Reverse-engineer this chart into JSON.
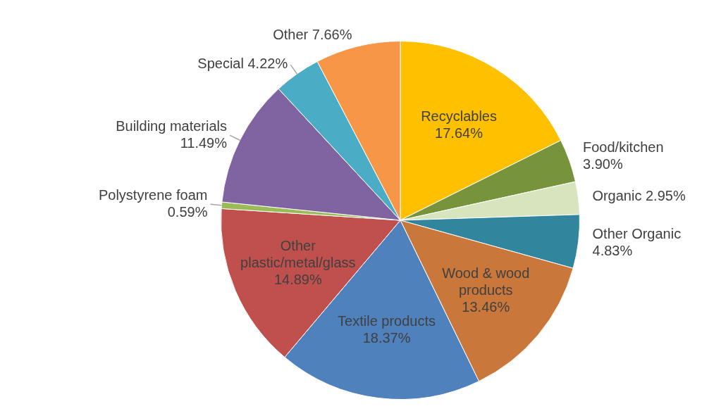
{
  "chart_data": {
    "type": "pie",
    "categories": [
      "Recyclables",
      "Food/kitchen",
      "Organic",
      "Other Organic",
      "Wood & wood products",
      "Textile products",
      "Other plastic/metal/glass",
      "Polystyrene foam",
      "Building materials",
      "Special",
      "Other"
    ],
    "values": [
      17.64,
      3.9,
      2.95,
      4.83,
      13.46,
      18.37,
      14.89,
      0.59,
      11.49,
      4.22,
      7.66
    ],
    "colors": [
      "#ffc000",
      "#77933c",
      "#d7e4bd",
      "#31859c",
      "#c9773a",
      "#4f81bd",
      "#c0504d",
      "#9bbb59",
      "#8064a2",
      "#4bacc6",
      "#f79646"
    ],
    "value_labels": [
      "17.64%",
      "3.90%",
      "2.95%",
      "4.83%",
      "13.46%",
      "18.37%",
      "14.89%",
      "0.59%",
      "11.49%",
      "4.22%",
      "7.66%"
    ],
    "legend": false
  }
}
